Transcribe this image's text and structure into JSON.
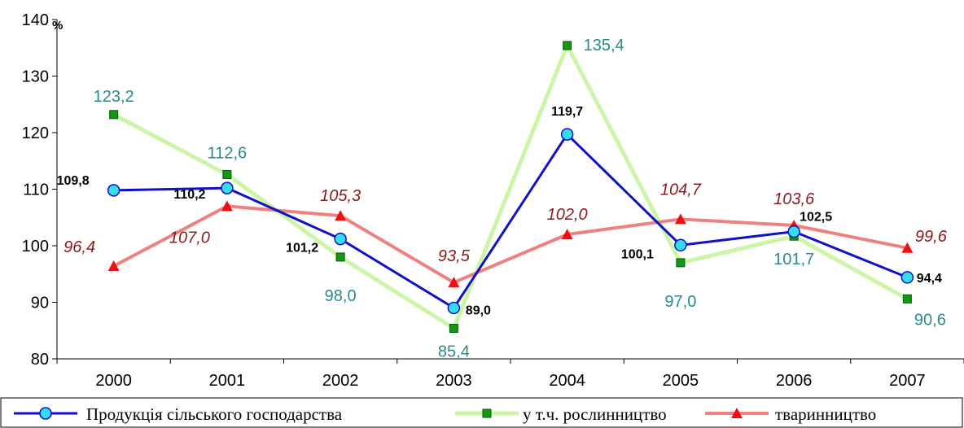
{
  "chart_data": {
    "type": "line",
    "title": "",
    "xlabel": "",
    "ylabel": "%",
    "ylim": [
      80,
      140
    ],
    "yticks": [
      "80",
      "90",
      "100",
      "110",
      "120",
      "130",
      "140"
    ],
    "categories": [
      "2000",
      "2001",
      "2002",
      "2003",
      "2004",
      "2005",
      "2006",
      "2007"
    ],
    "series": [
      {
        "name": "Продукція сільського господарства",
        "values": [
          109.8,
          110.2,
          101.2,
          89.0,
          119.7,
          100.1,
          102.5,
          94.4
        ],
        "labels": [
          "109,8",
          "110,2",
          "101,2",
          "89,0",
          "119,7",
          "100,1",
          "102,5",
          "94,4"
        ],
        "color": "#1010c8",
        "marker": "circle",
        "marker_color": "#33ddee"
      },
      {
        "name": "у т.ч. рослинництво",
        "values": [
          123.2,
          112.6,
          98.0,
          85.4,
          135.4,
          97.0,
          101.7,
          90.6
        ],
        "labels": [
          "123,2",
          "112,6",
          "98,0",
          "85,4",
          "135,4",
          "97,0",
          "101,7",
          "90,6"
        ],
        "color": "#ccf5a8",
        "marker": "square",
        "marker_color": "#119911"
      },
      {
        "name": "тваринництво",
        "values": [
          96.4,
          107.0,
          105.3,
          93.5,
          102.0,
          104.7,
          103.6,
          99.6
        ],
        "labels": [
          "96,4",
          "107,0",
          "105,3",
          "93,5",
          "102,0",
          "104,7",
          "103,6",
          "99,6"
        ],
        "color": "#f08080",
        "marker": "triangle",
        "marker_color": "#ee1111"
      }
    ],
    "grid": false,
    "legend_position": "bottom"
  }
}
